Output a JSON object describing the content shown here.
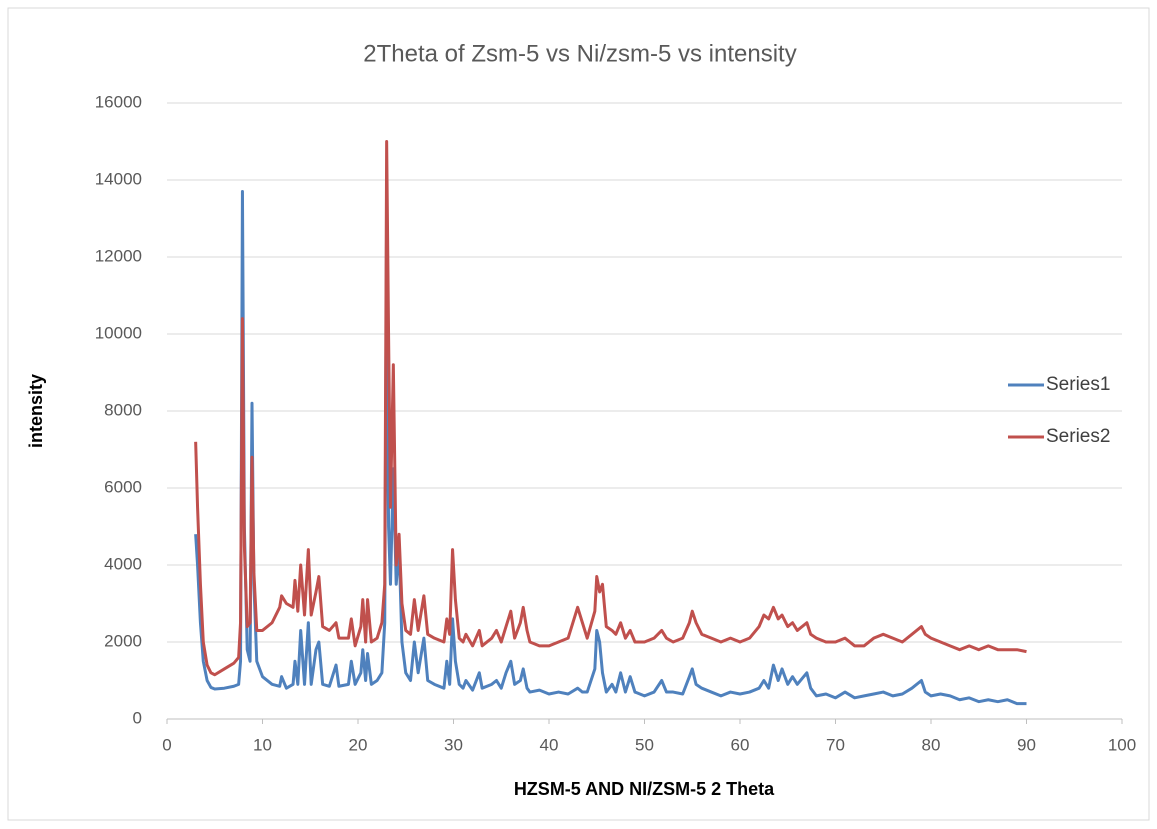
{
  "chart_data": {
    "type": "line",
    "title": "2Theta of Zsm-5 vs Ni/zsm-5 vs intensity",
    "x_label": "HZSM-5 AND NI/ZSM-5 2 Theta",
    "y_label": "intensity",
    "x": [
      3.0,
      3.2,
      3.5,
      3.8,
      4.2,
      4.6,
      5,
      6,
      7,
      7.5,
      7.7,
      7.9,
      8.1,
      8.4,
      8.7,
      8.9,
      9.1,
      9.4,
      10,
      11,
      11.8,
      12,
      12.5,
      13.2,
      13.4,
      13.7,
      14,
      14.4,
      14.8,
      15.1,
      15.6,
      15.9,
      16.3,
      17,
      17.7,
      18,
      19,
      19.3,
      19.7,
      20.3,
      20.5,
      20.8,
      21,
      21.4,
      22,
      22.5,
      22.8,
      23.0,
      23.2,
      23.4,
      23.7,
      24,
      24.3,
      24.6,
      25,
      25.5,
      25.9,
      26.3,
      26.9,
      27.3,
      28,
      29,
      29.3,
      29.6,
      29.9,
      30.2,
      30.6,
      31,
      31.3,
      32,
      32.7,
      33,
      34,
      34.5,
      35,
      35.5,
      36,
      36.4,
      37,
      37.3,
      37.7,
      38,
      39,
      40,
      41,
      42,
      43,
      43.5,
      44,
      44.8,
      45,
      45.3,
      45.6,
      46,
      46.6,
      47,
      47.5,
      48,
      48.5,
      49,
      50,
      51,
      51.8,
      52.3,
      53,
      54,
      54.7,
      55,
      55.4,
      56,
      57,
      58,
      59,
      60,
      61,
      62,
      62.5,
      63,
      63.5,
      64,
      64.4,
      65,
      65.5,
      66,
      67,
      67.4,
      68,
      69,
      70,
      71,
      72,
      73,
      74,
      75,
      76,
      77,
      78,
      79,
      79.4,
      80,
      81,
      82,
      83,
      84,
      85,
      86,
      87,
      88,
      89,
      90
    ],
    "series": [
      {
        "name": "Series1",
        "color": "#4f81bd",
        "values": [
          4800,
          4000,
          2500,
          1500,
          1000,
          820,
          780,
          800,
          850,
          900,
          1500,
          13700,
          5000,
          1800,
          1500,
          8200,
          3500,
          1500,
          1100,
          900,
          850,
          1100,
          800,
          900,
          1500,
          900,
          2300,
          900,
          2500,
          900,
          1800,
          2000,
          900,
          850,
          1400,
          850,
          900,
          1500,
          900,
          1200,
          1800,
          1000,
          1700,
          900,
          1000,
          1200,
          2500,
          13300,
          5000,
          3500,
          6500,
          3500,
          4500,
          2000,
          1200,
          1000,
          2000,
          1200,
          2100,
          1000,
          900,
          800,
          1500,
          900,
          2600,
          1500,
          900,
          800,
          1000,
          750,
          1200,
          800,
          900,
          1000,
          800,
          1200,
          1500,
          900,
          1000,
          1300,
          800,
          700,
          750,
          650,
          700,
          650,
          800,
          700,
          700,
          1300,
          2300,
          2000,
          1200,
          700,
          900,
          700,
          1200,
          700,
          1100,
          700,
          600,
          700,
          1000,
          700,
          700,
          650,
          1100,
          1300,
          900,
          800,
          700,
          600,
          700,
          650,
          700,
          800,
          1000,
          800,
          1400,
          1000,
          1300,
          900,
          1100,
          900,
          1200,
          800,
          600,
          650,
          550,
          700,
          550,
          600,
          650,
          700,
          600,
          650,
          800,
          1000,
          700,
          600,
          650,
          600,
          500,
          550,
          450,
          500,
          450,
          500,
          400,
          400
        ]
      },
      {
        "name": "Series2",
        "color": "#c0504d",
        "values": [
          7200,
          5500,
          3500,
          2000,
          1400,
          1200,
          1150,
          1300,
          1450,
          1600,
          2500,
          10400,
          4500,
          2400,
          2500,
          6800,
          3800,
          2300,
          2300,
          2500,
          2900,
          3200,
          3000,
          2900,
          3600,
          2800,
          4000,
          2700,
          4400,
          2700,
          3300,
          3700,
          2400,
          2300,
          2500,
          2100,
          2100,
          2600,
          1900,
          2400,
          3100,
          2000,
          3100,
          2000,
          2100,
          2500,
          3500,
          15000,
          10000,
          5500,
          9200,
          4000,
          4800,
          3000,
          2300,
          2200,
          3100,
          2300,
          3200,
          2200,
          2100,
          2000,
          2600,
          2200,
          4400,
          3100,
          2100,
          2000,
          2200,
          1900,
          2300,
          1900,
          2100,
          2300,
          2000,
          2400,
          2800,
          2100,
          2500,
          2900,
          2300,
          2000,
          1900,
          1900,
          2000,
          2100,
          2900,
          2500,
          2100,
          2800,
          3700,
          3300,
          3500,
          2400,
          2300,
          2200,
          2500,
          2100,
          2300,
          2000,
          2000,
          2100,
          2300,
          2100,
          2000,
          2100,
          2500,
          2800,
          2500,
          2200,
          2100,
          2000,
          2100,
          2000,
          2100,
          2400,
          2700,
          2600,
          2900,
          2600,
          2700,
          2400,
          2500,
          2300,
          2500,
          2200,
          2100,
          2000,
          2000,
          2100,
          1900,
          1900,
          2100,
          2200,
          2100,
          2000,
          2200,
          2400,
          2200,
          2100,
          2000,
          1900,
          1800,
          1900,
          1800,
          1900,
          1800,
          1800,
          1800,
          1750
        ]
      }
    ],
    "xlim": [
      0,
      100
    ],
    "xticks": [
      0,
      10,
      20,
      30,
      40,
      50,
      60,
      70,
      80,
      90,
      100
    ],
    "ylim": [
      0,
      16000
    ],
    "yticks": [
      0,
      2000,
      4000,
      6000,
      8000,
      10000,
      12000,
      14000,
      16000
    ],
    "grid": true,
    "legend": "right"
  }
}
